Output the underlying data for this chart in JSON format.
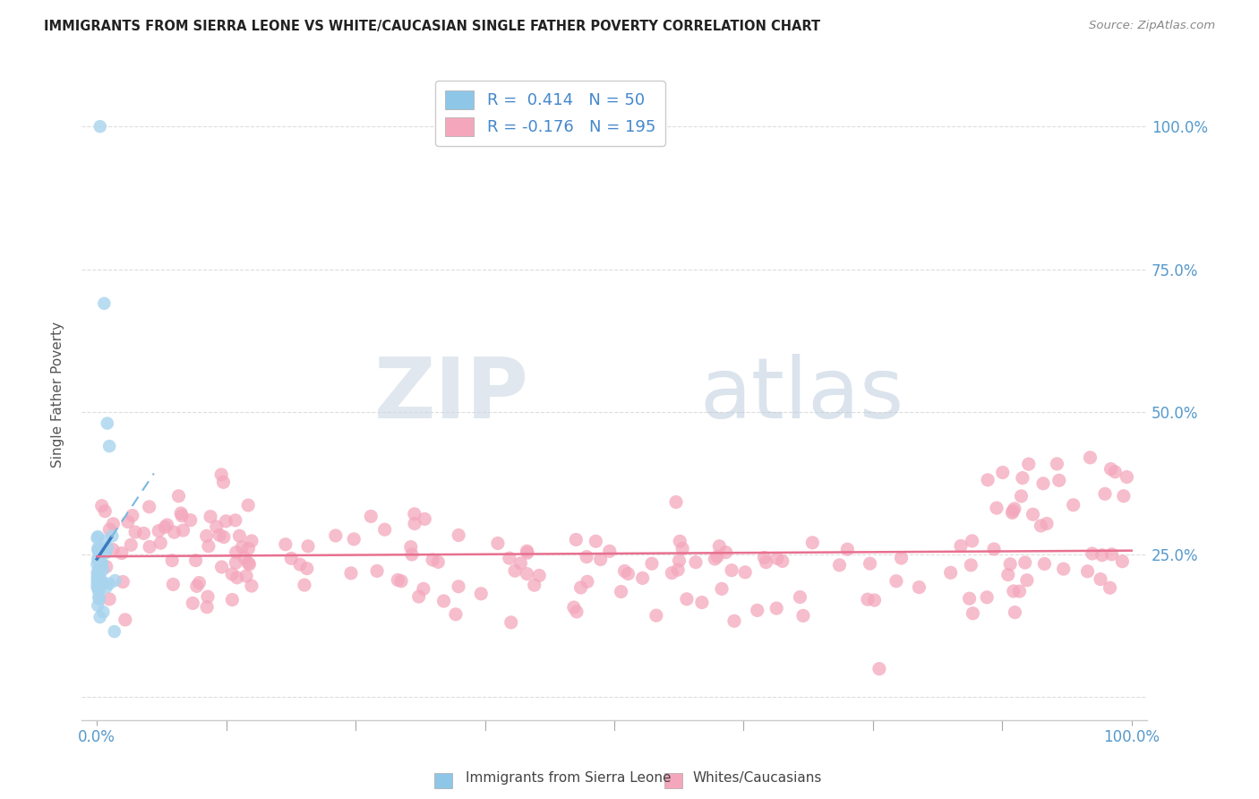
{
  "title": "IMMIGRANTS FROM SIERRA LEONE VS WHITE/CAUCASIAN SINGLE FATHER POVERTY CORRELATION CHART",
  "source": "Source: ZipAtlas.com",
  "ylabel": "Single Father Poverty",
  "yticks": [
    "",
    "25.0%",
    "50.0%",
    "75.0%",
    "100.0%"
  ],
  "ytick_vals": [
    0.0,
    0.25,
    0.5,
    0.75,
    1.0
  ],
  "yticks_right": [
    "",
    "25.0%",
    "50.0%",
    "75.0%",
    "100.0%"
  ],
  "legend_label1": "Immigrants from Sierra Leone",
  "legend_label2": "Whites/Caucasians",
  "R1": 0.414,
  "N1": 50,
  "R2": -0.176,
  "N2": 195,
  "color_blue": "#8ec6e8",
  "color_blue_scatter": "#a8d4ee",
  "color_pink": "#f4a7bc",
  "color_blue_line": "#3a7abf",
  "color_pink_line": "#e87090",
  "color_blue_dashed": "#7ab8e0",
  "watermark_zip": "#c8d8e8",
  "watermark_atlas": "#b8c8dc",
  "background_color": "#ffffff",
  "seed": 42
}
